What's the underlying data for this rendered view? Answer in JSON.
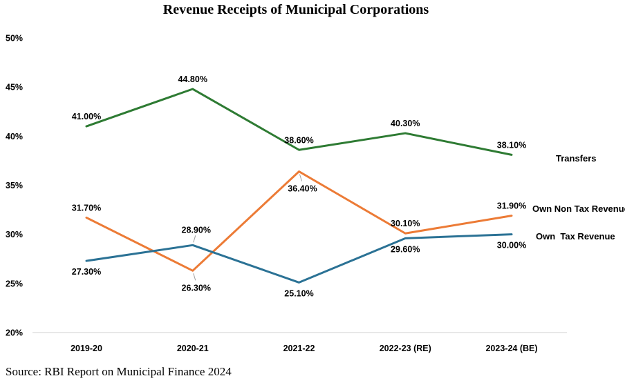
{
  "title": "Revenue Receipts of Municipal Corporations",
  "source": "Source: RBI Report on Municipal Finance 2024",
  "chart_data": {
    "type": "line",
    "title": "Revenue Receipts of Municipal Corporations",
    "categories": [
      "2019-20",
      "2020-21",
      "2021-22",
      "2022-23 (RE)",
      "2023-24 (BE)"
    ],
    "y_ticks": [
      "50%",
      "45%",
      "40%",
      "35%",
      "30%",
      "25%",
      "20%"
    ],
    "ylim": [
      20,
      50
    ],
    "grid": "bottom-baseline-only",
    "legend_position": "right-of-line-ends",
    "axis_color": "#d9d9d9",
    "leader_color": "#a0a0a0",
    "series": [
      {
        "name": "Transfers",
        "color": "#2e7b33",
        "values": [
          41.0,
          44.8,
          38.6,
          40.3,
          38.1
        ],
        "labels": [
          "41.00%",
          "44.80%",
          "38.60%",
          "40.30%",
          "38.10%"
        ],
        "label_sides": [
          "above",
          "above",
          "above",
          "above",
          "above"
        ],
        "label_leaders": [
          false,
          false,
          false,
          false,
          false
        ]
      },
      {
        "name": "Own Non Tax Revenue",
        "color": "#ec7b36",
        "values": [
          31.7,
          26.3,
          36.4,
          30.1,
          31.9
        ],
        "labels": [
          "31.70%",
          "26.30%",
          "36.40%",
          "30.10%",
          "31.90%"
        ],
        "label_sides": [
          "above",
          "below",
          "below",
          "above",
          "above"
        ],
        "label_leaders": [
          false,
          true,
          true,
          false,
          false
        ]
      },
      {
        "name": "Own  Tax Revenue",
        "color": "#2b7295",
        "values": [
          27.3,
          28.9,
          25.1,
          29.6,
          30.0
        ],
        "labels": [
          "27.30%",
          "28.90%",
          "25.10%",
          "29.60%",
          "30.00%"
        ],
        "label_sides": [
          "below",
          "above",
          "below",
          "below",
          "below"
        ],
        "label_leaders": [
          false,
          true,
          false,
          false,
          false
        ]
      }
    ]
  }
}
